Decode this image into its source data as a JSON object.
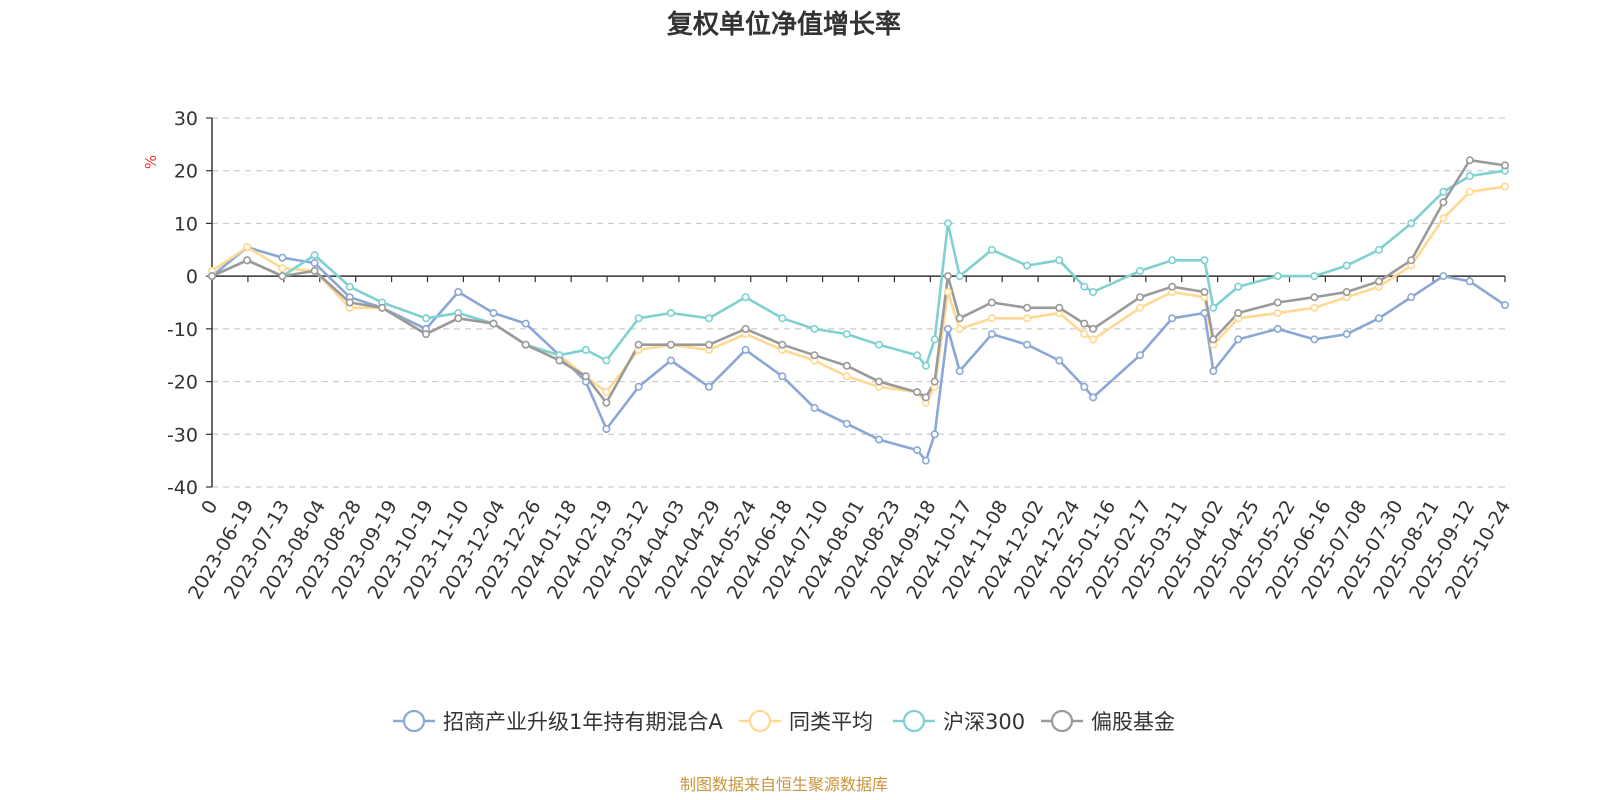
{
  "chart_data": {
    "type": "line",
    "title": "复权单位净值增长率",
    "ylabel": "%",
    "ylim": [
      -40,
      30
    ],
    "yticks": [
      30,
      20,
      10,
      0,
      -10,
      -20,
      -30,
      -40
    ],
    "grid": true,
    "legend_position": "bottom",
    "x_tick_labels": [
      "0",
      "2023-06-19",
      "2023-07-13",
      "2023-08-04",
      "2023-08-28",
      "2023-09-19",
      "2023-10-19",
      "2023-11-10",
      "2023-12-04",
      "2023-12-26",
      "2024-01-18",
      "2024-02-19",
      "2024-03-12",
      "2024-04-03",
      "2024-04-29",
      "2024-05-24",
      "2024-06-18",
      "2024-07-10",
      "2024-08-01",
      "2024-08-23",
      "2024-09-18",
      "2024-10-17",
      "2024-11-08",
      "2024-12-02",
      "2024-12-24",
      "2025-01-16",
      "2025-02-17",
      "2025-03-11",
      "2025-04-02",
      "2025-04-25",
      "2025-05-22",
      "2025-06-16",
      "2025-07-08",
      "2025-07-30",
      "2025-08-21",
      "2025-09-12",
      "2025-10-24"
    ],
    "x": [
      "2023-05-26",
      "2023-06-19",
      "2023-07-13",
      "2023-08-04",
      "2023-08-28",
      "2023-09-19",
      "2023-10-19",
      "2023-11-10",
      "2023-12-04",
      "2023-12-26",
      "2024-01-18",
      "2024-02-05",
      "2024-02-19",
      "2024-03-12",
      "2024-04-03",
      "2024-04-29",
      "2024-05-24",
      "2024-06-18",
      "2024-07-10",
      "2024-08-01",
      "2024-08-23",
      "2024-09-18",
      "2024-09-24",
      "2024-09-30",
      "2024-10-09",
      "2024-10-17",
      "2024-11-08",
      "2024-12-02",
      "2024-12-24",
      "2025-01-10",
      "2025-01-16",
      "2025-02-17",
      "2025-03-11",
      "2025-04-02",
      "2025-04-08",
      "2025-04-25",
      "2025-05-22",
      "2025-06-16",
      "2025-07-08",
      "2025-07-30",
      "2025-08-21",
      "2025-09-12",
      "2025-09-30",
      "2025-10-24"
    ],
    "series": [
      {
        "name": "招商产业升级1年持有期混合A",
        "color": "#8ba7d6",
        "values": [
          0,
          5.5,
          3.5,
          2.5,
          -4,
          -6,
          -10,
          -3,
          -7,
          -9,
          -15,
          -20,
          -29,
          -21,
          -16,
          -21,
          -14,
          -19,
          -25,
          -28,
          -31,
          -33,
          -35,
          -30,
          -10,
          -18,
          -11,
          -13,
          -16,
          -21,
          -23,
          -15,
          -8,
          -7,
          -18,
          -12,
          -10,
          -12,
          -11,
          -8,
          -4,
          0,
          -1,
          -5.5
        ]
      },
      {
        "name": "同类平均",
        "color": "#ffd991",
        "values": [
          1,
          5.5,
          1.5,
          1,
          -6,
          -6,
          -11,
          -8,
          -9,
          -13,
          -15,
          -19,
          -22,
          -14,
          -13,
          -14,
          -11,
          -14,
          -16,
          -19,
          -21,
          -22,
          -24,
          -21,
          -3,
          -10,
          -8,
          -8,
          -7,
          -11,
          -12,
          -6,
          -3,
          -4,
          -13,
          -8,
          -7,
          -6,
          -4,
          -2,
          2,
          11,
          16,
          17
        ]
      },
      {
        "name": "沪深300",
        "color": "#7fd0d0",
        "values": [
          0,
          3,
          0,
          4,
          -2,
          -5,
          -8,
          -7,
          -9,
          -13,
          -15,
          -14,
          -16,
          -8,
          -7,
          -8,
          -4,
          -8,
          -10,
          -11,
          -13,
          -15,
          -17,
          -12,
          10,
          0,
          5,
          2,
          3,
          -2,
          -3,
          1,
          3,
          3,
          -6,
          -2,
          0,
          0,
          2,
          5,
          10,
          16,
          19,
          20
        ]
      },
      {
        "name": "偏股基金",
        "color": "#9a9a9a",
        "values": [
          0,
          3,
          0,
          1,
          -5,
          -6,
          -11,
          -8,
          -9,
          -13,
          -16,
          -19,
          -24,
          -13,
          -13,
          -13,
          -10,
          -13,
          -15,
          -17,
          -20,
          -22,
          -23,
          -20,
          0,
          -8,
          -5,
          -6,
          -6,
          -9,
          -10,
          -4,
          -2,
          -3,
          -12,
          -7,
          -5,
          -4,
          -3,
          -1,
          3,
          14,
          22,
          21
        ]
      }
    ]
  },
  "legend": {
    "items": [
      "招商产业升级1年持有期混合A",
      "同类平均",
      "沪深300",
      "偏股基金"
    ]
  },
  "footer": {
    "source": "制图数据来自恒生聚源数据库"
  }
}
